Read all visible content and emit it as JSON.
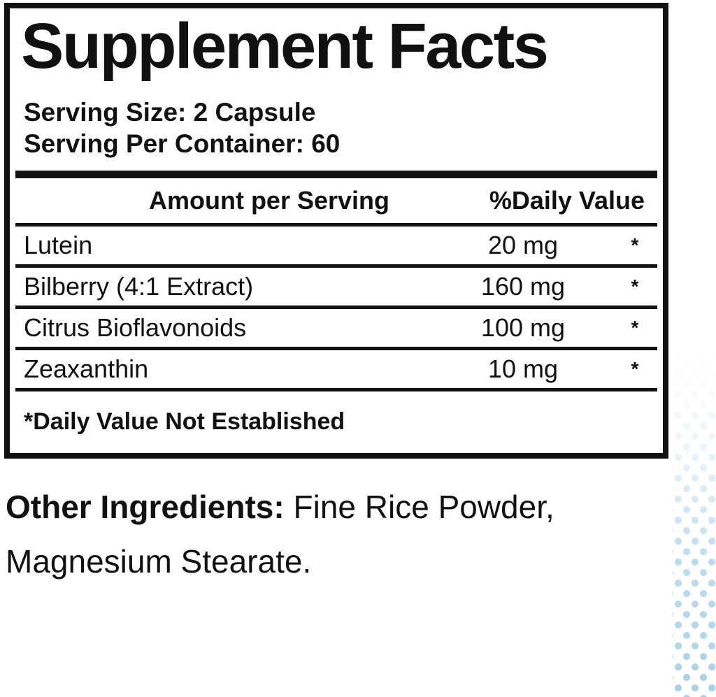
{
  "panel": {
    "title": "Supplement Facts",
    "serving_size": "Serving Size: 2 Capsule",
    "serving_per_container": "Serving Per Container: 60",
    "columns": {
      "amount": "Amount per Serving",
      "daily_value": "%Daily Value"
    },
    "rows": [
      {
        "name": "Lutein",
        "amount": "20 mg",
        "dv": "*"
      },
      {
        "name": "Bilberry (4:1 Extract)",
        "amount": "160 mg",
        "dv": "*"
      },
      {
        "name": "Citrus Bioflavonoids",
        "amount": "100 mg",
        "dv": "*"
      },
      {
        "name": "Zeaxanthin",
        "amount": "10 mg",
        "dv": "*"
      }
    ],
    "footnote": "*Daily Value Not Established"
  },
  "other_ingredients": {
    "label": "Other Ingredients:",
    "line1_rest": " Fine Rice Powder,",
    "line2": "Magnesium Stearate."
  },
  "decor": {
    "dot_color": "#a9d1e8",
    "text_color": "#111111"
  }
}
